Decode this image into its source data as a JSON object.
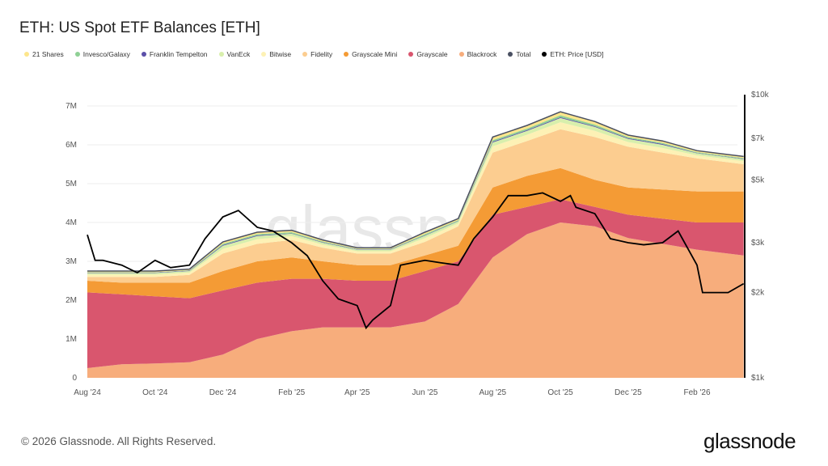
{
  "title": "ETH: US Spot ETF Balances [ETH]",
  "footer": "© 2026 Glassnode. All Rights Reserved.",
  "logo": "glassnode",
  "watermark": "glassnode",
  "chart_data": {
    "type": "area",
    "stacked": true,
    "title": "ETH: US Spot ETF Balances [ETH]",
    "legend_position": "top-left",
    "grid": true,
    "y_left": {
      "ticks": [
        "0",
        "1M",
        "2M",
        "3M",
        "4M",
        "5M",
        "6M",
        "7M"
      ],
      "range": [
        0,
        7500000
      ]
    },
    "y_right": {
      "scale": "log",
      "ticks": [
        "$1k",
        "$2k",
        "$3k",
        "$5k",
        "$7k",
        "$10k"
      ],
      "tick_values": [
        1000,
        2000,
        3000,
        5000,
        7000,
        10000
      ],
      "range": [
        1000,
        10000
      ]
    },
    "x_ticks": [
      {
        "label": "Aug '24",
        "date": "2024-08-01"
      },
      {
        "label": "Oct '24",
        "date": "2024-10-01"
      },
      {
        "label": "Dec '24",
        "date": "2024-12-01"
      },
      {
        "label": "Feb '25",
        "date": "2025-02-01"
      },
      {
        "label": "Apr '25",
        "date": "2025-04-01"
      },
      {
        "label": "Jun '25",
        "date": "2025-06-01"
      },
      {
        "label": "Aug '25",
        "date": "2025-08-01"
      },
      {
        "label": "Oct '25",
        "date": "2025-10-01"
      },
      {
        "label": "Dec '25",
        "date": "2025-12-01"
      },
      {
        "label": "Feb '26",
        "date": "2026-02-01"
      }
    ],
    "dates": [
      "2024-08-01",
      "2024-09-01",
      "2024-10-01",
      "2024-11-01",
      "2024-12-01",
      "2025-01-01",
      "2025-02-01",
      "2025-03-01",
      "2025-04-01",
      "2025-05-01",
      "2025-06-01",
      "2025-07-01",
      "2025-08-01",
      "2025-09-01",
      "2025-10-01",
      "2025-11-01",
      "2025-12-01",
      "2026-01-01",
      "2026-02-01",
      "2026-03-15"
    ],
    "series": [
      {
        "name": "Blackrock",
        "color": "#f7ad7c",
        "values": [
          250000,
          350000,
          370000,
          400000,
          600000,
          1000000,
          1200000,
          1300000,
          1300000,
          1300000,
          1450000,
          1900000,
          3100000,
          3700000,
          4000000,
          3900000,
          3600000,
          3450000,
          3300000,
          3150000
        ]
      },
      {
        "name": "Grayscale",
        "color": "#d9566e",
        "values": [
          1950000,
          1800000,
          1730000,
          1650000,
          1650000,
          1450000,
          1350000,
          1250000,
          1200000,
          1200000,
          1300000,
          1100000,
          1100000,
          700000,
          600000,
          500000,
          600000,
          650000,
          700000,
          850000
        ]
      },
      {
        "name": "Grayscale Mini",
        "color": "#f49b35",
        "values": [
          300000,
          300000,
          350000,
          400000,
          500000,
          550000,
          550000,
          450000,
          400000,
          400000,
          400000,
          400000,
          700000,
          800000,
          800000,
          700000,
          700000,
          750000,
          800000,
          800000
        ]
      },
      {
        "name": "Fidelity",
        "color": "#fccd90",
        "values": [
          100000,
          150000,
          150000,
          200000,
          450000,
          450000,
          450000,
          350000,
          300000,
          300000,
          350000,
          500000,
          900000,
          900000,
          1000000,
          1100000,
          1050000,
          950000,
          850000,
          700000
        ]
      },
      {
        "name": "Bitwise",
        "color": "#fdf1b5",
        "values": [
          60000,
          60000,
          60000,
          60000,
          120000,
          120000,
          100000,
          80000,
          60000,
          60000,
          100000,
          80000,
          160000,
          160000,
          180000,
          160000,
          120000,
          120000,
          80000,
          80000
        ]
      },
      {
        "name": "VanEck",
        "color": "#d8efac",
        "values": [
          40000,
          40000,
          40000,
          40000,
          80000,
          80000,
          60000,
          50000,
          40000,
          40000,
          60000,
          50000,
          100000,
          100000,
          110000,
          100000,
          80000,
          80000,
          50000,
          50000
        ]
      },
      {
        "name": "Franklin Tempelton",
        "color": "#5b4fa9",
        "values": [
          10000,
          10000,
          10000,
          10000,
          20000,
          20000,
          10000,
          10000,
          10000,
          10000,
          10000,
          10000,
          20000,
          20000,
          20000,
          20000,
          20000,
          20000,
          10000,
          10000
        ]
      },
      {
        "name": "Invesco/Galaxy",
        "color": "#8fd095",
        "values": [
          10000,
          10000,
          10000,
          10000,
          30000,
          30000,
          30000,
          20000,
          10000,
          10000,
          30000,
          20000,
          40000,
          40000,
          50000,
          40000,
          30000,
          30000,
          20000,
          20000
        ]
      },
      {
        "name": "21 Shares",
        "color": "#fde68c",
        "values": [
          30000,
          30000,
          30000,
          30000,
          50000,
          50000,
          50000,
          40000,
          30000,
          30000,
          50000,
          40000,
          80000,
          80000,
          90000,
          80000,
          50000,
          50000,
          40000,
          40000
        ]
      }
    ],
    "total": {
      "name": "Total",
      "color": "#4a5062"
    },
    "price": {
      "name": "ETH: Price [USD]",
      "color": "#000000",
      "dates": [
        "2024-08-01",
        "2024-08-08",
        "2024-08-15",
        "2024-09-01",
        "2024-09-15",
        "2024-10-01",
        "2024-10-15",
        "2024-11-01",
        "2024-11-15",
        "2024-12-01",
        "2024-12-15",
        "2025-01-01",
        "2025-01-15",
        "2025-02-01",
        "2025-02-15",
        "2025-03-01",
        "2025-03-15",
        "2025-04-01",
        "2025-04-09",
        "2025-04-15",
        "2025-05-01",
        "2025-05-10",
        "2025-06-01",
        "2025-06-15",
        "2025-07-01",
        "2025-07-15",
        "2025-08-01",
        "2025-08-15",
        "2025-09-01",
        "2025-09-15",
        "2025-10-01",
        "2025-10-10",
        "2025-10-15",
        "2025-11-01",
        "2025-11-15",
        "2025-12-01",
        "2025-12-15",
        "2026-01-01",
        "2026-01-15",
        "2026-02-01",
        "2026-02-06",
        "2026-02-15",
        "2026-03-01",
        "2026-03-15"
      ],
      "values": [
        3200,
        2600,
        2600,
        2500,
        2350,
        2600,
        2450,
        2500,
        3100,
        3700,
        3900,
        3400,
        3300,
        3000,
        2700,
        2200,
        1900,
        1800,
        1500,
        1600,
        1800,
        2500,
        2600,
        2550,
        2500,
        3100,
        3700,
        4400,
        4400,
        4500,
        4200,
        4400,
        4000,
        3800,
        3100,
        3000,
        2950,
        3000,
        3300,
        2500,
        2000,
        2000,
        2000,
        2150
      ]
    }
  },
  "legend": [
    {
      "label": "21 Shares",
      "color": "#fde68c"
    },
    {
      "label": "Invesco/Galaxy",
      "color": "#8fd095"
    },
    {
      "label": "Franklin Tempelton",
      "color": "#5b4fa9"
    },
    {
      "label": "VanEck",
      "color": "#d8efac"
    },
    {
      "label": "Bitwise",
      "color": "#fdf1b5"
    },
    {
      "label": "Fidelity",
      "color": "#fccd90"
    },
    {
      "label": "Grayscale Mini",
      "color": "#f49b35"
    },
    {
      "label": "Grayscale",
      "color": "#d9566e"
    },
    {
      "label": "Blackrock",
      "color": "#f7ad7c"
    },
    {
      "label": "Total",
      "color": "#4a5062"
    },
    {
      "label": "ETH: Price [USD]",
      "color": "#000000"
    }
  ]
}
